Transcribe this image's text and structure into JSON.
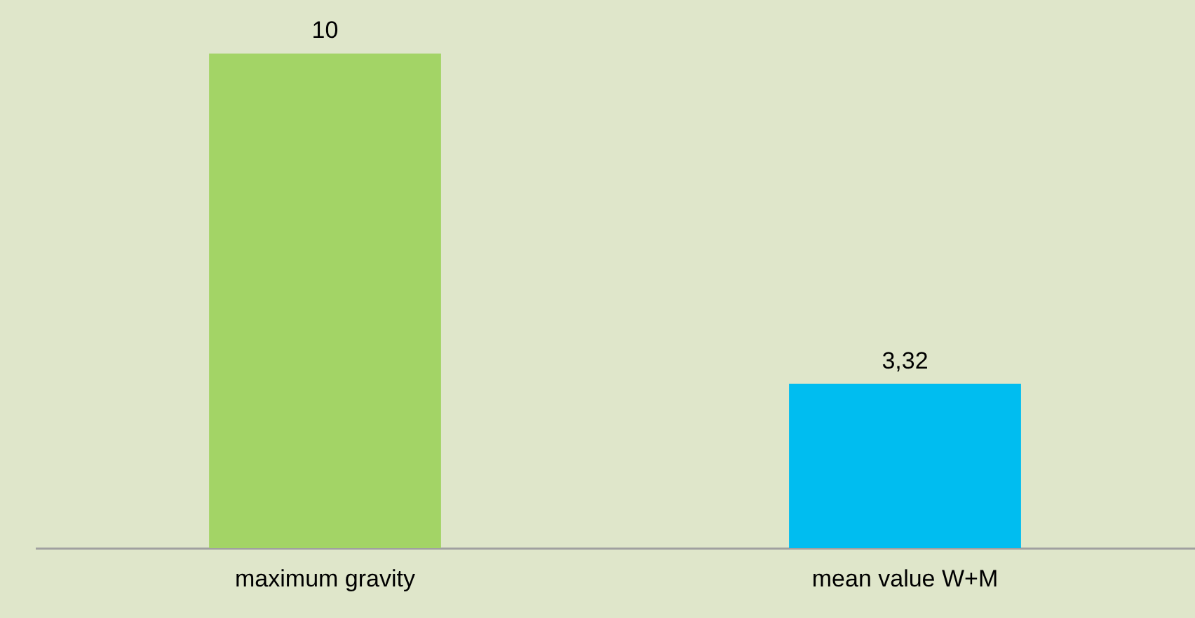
{
  "chart_data": {
    "type": "bar",
    "categories": [
      "maximum gravity",
      "mean value W+M"
    ],
    "values": [
      10,
      3.32
    ],
    "colors": [
      "#a3d466",
      "#00bdf0"
    ],
    "value_labels": [
      "10",
      "3,32"
    ],
    "grid": false
  }
}
